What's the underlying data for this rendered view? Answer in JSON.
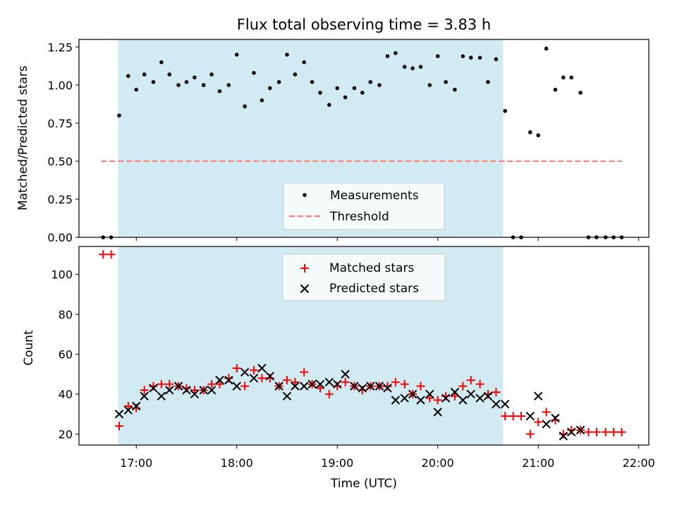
{
  "figure": {
    "title": "Flux total observing time = 3.83 h"
  },
  "chart_data": [
    {
      "type": "scatter",
      "panel": "top",
      "title": "Flux total observing time = 3.83 h",
      "xlabel": "",
      "ylabel": "Matched/Predicted stars",
      "xlim_hours": [
        16.43,
        22.1
      ],
      "ylim": [
        0,
        1.3
      ],
      "yticks": [
        0.0,
        0.25,
        0.5,
        0.75,
        1.0,
        1.25
      ],
      "ytick_labels": [
        "0.00",
        "0.25",
        "0.50",
        "0.75",
        "1.00",
        "1.25"
      ],
      "shaded_interval_hours": [
        16.82,
        20.65
      ],
      "shade_color": "#add8e6",
      "threshold": {
        "name": "Threshold",
        "value": 0.5,
        "x_range_hours": [
          16.65,
          21.83
        ],
        "color": "#ff7f7f"
      },
      "legend": {
        "position": "lower center",
        "entries": [
          "Measurements",
          "Threshold"
        ]
      },
      "series": [
        {
          "name": "Measurements",
          "color": "#000000",
          "marker": "dot",
          "x_hours": [
            16.67,
            16.75,
            16.83,
            16.92,
            17.0,
            17.08,
            17.17,
            17.25,
            17.33,
            17.42,
            17.5,
            17.58,
            17.67,
            17.75,
            17.83,
            17.92,
            18.0,
            18.08,
            18.17,
            18.25,
            18.33,
            18.42,
            18.5,
            18.58,
            18.67,
            18.75,
            18.83,
            18.92,
            19.0,
            19.08,
            19.17,
            19.25,
            19.33,
            19.42,
            19.5,
            19.58,
            19.67,
            19.75,
            19.83,
            19.92,
            20.0,
            20.08,
            20.17,
            20.25,
            20.33,
            20.42,
            20.5,
            20.58,
            20.67,
            20.75,
            20.83,
            20.92,
            21.0,
            21.08,
            21.17,
            21.25,
            21.33,
            21.42,
            21.5,
            21.58,
            21.67,
            21.75,
            21.83
          ],
          "y": [
            0.0,
            0.0,
            0.8,
            1.06,
            0.97,
            1.07,
            1.02,
            1.15,
            1.07,
            1.0,
            1.02,
            1.05,
            1.0,
            1.07,
            0.96,
            1.0,
            1.2,
            0.86,
            1.08,
            0.9,
            0.98,
            1.02,
            1.2,
            1.07,
            1.15,
            1.02,
            0.95,
            0.87,
            0.98,
            0.92,
            0.98,
            0.95,
            1.02,
            1.0,
            1.19,
            1.21,
            1.12,
            1.11,
            1.12,
            1.0,
            1.19,
            1.02,
            0.97,
            1.19,
            1.18,
            1.18,
            1.02,
            1.17,
            0.83,
            0.0,
            0.0,
            0.69,
            0.67,
            1.24,
            0.97,
            1.05,
            1.05,
            0.95,
            0.0,
            0.0,
            0.0,
            0.0,
            0.0
          ]
        }
      ]
    },
    {
      "type": "scatter",
      "panel": "bottom",
      "xlabel": "Time (UTC)",
      "ylabel": "Count",
      "xlim_hours": [
        16.43,
        22.1
      ],
      "ylim": [
        14.5,
        114
      ],
      "yticks": [
        20,
        40,
        60,
        80,
        100
      ],
      "ytick_labels": [
        "20",
        "40",
        "60",
        "80",
        "100"
      ],
      "xticks_hours": [
        17,
        18,
        19,
        20,
        21,
        22
      ],
      "xtick_labels": [
        "17:00",
        "18:00",
        "19:00",
        "20:00",
        "21:00",
        "22:00"
      ],
      "shaded_interval_hours": [
        16.82,
        20.65
      ],
      "shade_color": "#add8e6",
      "legend": {
        "position": "upper center",
        "entries": [
          "Matched stars",
          "Predicted stars"
        ]
      },
      "series": [
        {
          "name": "Matched stars",
          "color": "#ff0000",
          "marker": "plus",
          "x_hours": [
            16.67,
            16.75,
            16.83,
            16.92,
            17.0,
            17.08,
            17.17,
            17.25,
            17.33,
            17.42,
            17.5,
            17.58,
            17.67,
            17.75,
            17.83,
            17.92,
            18.0,
            18.08,
            18.17,
            18.25,
            18.33,
            18.42,
            18.5,
            18.58,
            18.67,
            18.75,
            18.83,
            18.92,
            19.0,
            19.08,
            19.17,
            19.25,
            19.33,
            19.42,
            19.5,
            19.58,
            19.67,
            19.75,
            19.83,
            19.92,
            20.0,
            20.08,
            20.17,
            20.25,
            20.33,
            20.42,
            20.5,
            20.58,
            20.67,
            20.75,
            20.83,
            20.92,
            21.0,
            21.08,
            21.17,
            21.25,
            21.33,
            21.42,
            21.5,
            21.58,
            21.67,
            21.75,
            21.83
          ],
          "y": [
            110,
            110,
            24,
            34,
            33,
            42,
            44,
            45,
            45,
            44,
            43,
            42,
            42,
            45,
            45,
            48,
            53,
            44,
            52,
            48,
            48,
            44,
            47,
            46,
            51,
            45,
            43,
            40,
            44,
            46,
            44,
            42,
            44,
            44,
            44,
            46,
            45,
            40,
            44,
            38,
            37,
            39,
            39,
            44,
            47,
            45,
            40,
            41,
            29,
            29,
            29,
            20,
            26,
            31,
            27,
            20,
            22,
            22,
            21,
            21,
            21,
            21,
            21
          ]
        },
        {
          "name": "Predicted stars",
          "color": "#000000",
          "marker": "x",
          "x_hours": [
            16.83,
            16.92,
            17.0,
            17.08,
            17.17,
            17.25,
            17.33,
            17.42,
            17.5,
            17.58,
            17.67,
            17.75,
            17.83,
            17.92,
            18.0,
            18.08,
            18.17,
            18.25,
            18.33,
            18.42,
            18.5,
            18.58,
            18.67,
            18.75,
            18.83,
            18.92,
            19.0,
            19.08,
            19.17,
            19.25,
            19.33,
            19.42,
            19.5,
            19.58,
            19.67,
            19.75,
            19.83,
            19.92,
            20.0,
            20.08,
            20.17,
            20.25,
            20.33,
            20.42,
            20.5,
            20.58,
            20.67,
            20.92,
            21.0,
            21.08,
            21.17,
            21.25,
            21.33,
            21.42
          ],
          "y": [
            30,
            32,
            34,
            39,
            43,
            39,
            42,
            44,
            42,
            40,
            42,
            42,
            47,
            47,
            44,
            51,
            48,
            53,
            49,
            44,
            39,
            44,
            44,
            45,
            45,
            46,
            45,
            50,
            44,
            43,
            44,
            44,
            43,
            37,
            38,
            40,
            37,
            40,
            31,
            38,
            41,
            37,
            40,
            38,
            39,
            35,
            35,
            29,
            39,
            25,
            28,
            19,
            21,
            22
          ]
        }
      ]
    }
  ]
}
